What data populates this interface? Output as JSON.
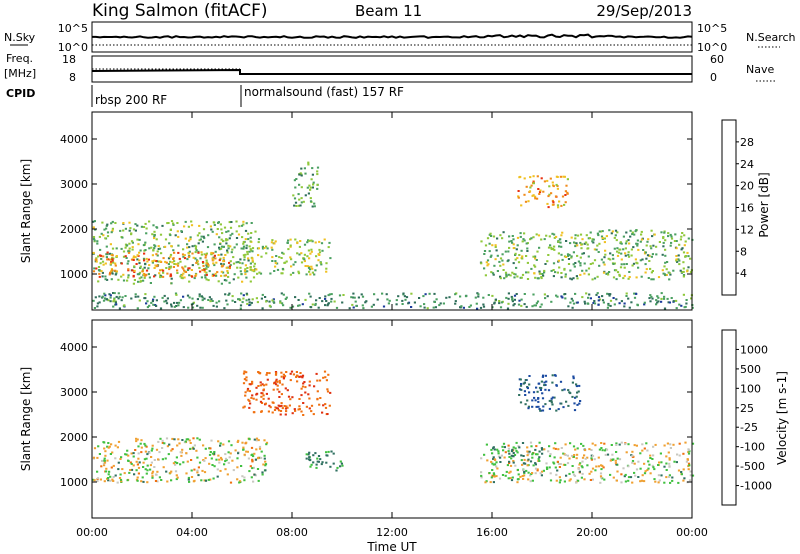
{
  "header": {
    "station": "King Salmon (fitACF)",
    "beam": "Beam 11",
    "date": "29/Sep/2013"
  },
  "top_panels": {
    "nsky_label": "N.Sky",
    "nsky_ticks": [
      "10^5",
      "10^0"
    ],
    "nsearch_label": "N.Search",
    "nsearch_ticks": [
      "10^5",
      "10^0"
    ],
    "freq_label": "Freq.",
    "freq_unit": "[MHz]",
    "freq_ticks": [
      18,
      8
    ],
    "nave_label": "Nave",
    "nave_ticks": [
      60,
      0
    ],
    "cpid_label": "CPID",
    "cpid_segments": [
      {
        "label": "rbsp 200 RF",
        "start_hour": 0
      },
      {
        "label": "normalsound (fast) 157 RF",
        "start_hour": 6
      }
    ]
  },
  "chart_data": [
    {
      "type": "heatmap",
      "name": "power-panel",
      "title": "",
      "xlabel": "",
      "ylabel": "Slant Range [km]",
      "x_range": [
        0,
        24
      ],
      "y_range": [
        200,
        4600
      ],
      "y_ticks": [
        1000,
        2000,
        3000,
        4000
      ],
      "colorbar": {
        "label": "Power [dB]",
        "range": [
          0,
          32
        ],
        "ticks": [
          4,
          8,
          12,
          16,
          20,
          24,
          28
        ],
        "colors": [
          "#1010e0",
          "#1a3a9a",
          "#2f6e5a",
          "#4aa060",
          "#8fc83a",
          "#f0c020",
          "#f08a1a",
          "#e83010",
          "#e00000"
        ]
      },
      "regions": [
        {
          "x": [
            0,
            6.5
          ],
          "y": [
            800,
            2200
          ],
          "value": 14
        },
        {
          "x": [
            0,
            5.5
          ],
          "y": [
            950,
            1500
          ],
          "value": 24
        },
        {
          "x": [
            6,
            9.5
          ],
          "y": [
            1000,
            1800
          ],
          "value": 16
        },
        {
          "x": [
            8,
            9
          ],
          "y": [
            2500,
            3500
          ],
          "value": 12
        },
        {
          "x": [
            15.5,
            24
          ],
          "y": [
            900,
            2000
          ],
          "value": 14
        },
        {
          "x": [
            17,
            19
          ],
          "y": [
            2500,
            3200
          ],
          "value": 22
        },
        {
          "x": [
            0,
            24
          ],
          "y": [
            250,
            600
          ],
          "value": 10
        }
      ]
    },
    {
      "type": "heatmap",
      "name": "velocity-panel",
      "title": "",
      "xlabel": "Time UT",
      "ylabel": "Slant Range [km]",
      "x_range": [
        0,
        24
      ],
      "x_ticks": [
        "00:00",
        "04:00",
        "08:00",
        "12:00",
        "16:00",
        "20:00",
        "00:00"
      ],
      "y_range": [
        200,
        4600
      ],
      "y_ticks": [
        1000,
        2000,
        3000,
        4000
      ],
      "colorbar": {
        "label": "Velocity [m s-1]",
        "ticks": [
          "1000",
          "500",
          "100",
          "25",
          "-25",
          "-100",
          "-500",
          "-1000"
        ],
        "colors": [
          "#1030d0",
          "#1a4aa0",
          "#2f7060",
          "#40c040",
          "#c8c8c0",
          "#f0a030",
          "#f07010",
          "#e03010",
          "#e00000"
        ]
      },
      "regions": [
        {
          "x": [
            0,
            7
          ],
          "y": [
            1000,
            2000
          ],
          "value": 0
        },
        {
          "x": [
            8.5,
            10
          ],
          "y": [
            1200,
            1700
          ],
          "value": 200
        },
        {
          "x": [
            6,
            9.5
          ],
          "y": [
            2500,
            3500
          ],
          "value": -300
        },
        {
          "x": [
            15.5,
            24
          ],
          "y": [
            1000,
            1900
          ],
          "value": 0
        },
        {
          "x": [
            16,
            18
          ],
          "y": [
            1400,
            1800
          ],
          "value": 200
        },
        {
          "x": [
            17,
            19.5
          ],
          "y": [
            2600,
            3400
          ],
          "value": 400
        }
      ]
    }
  ]
}
